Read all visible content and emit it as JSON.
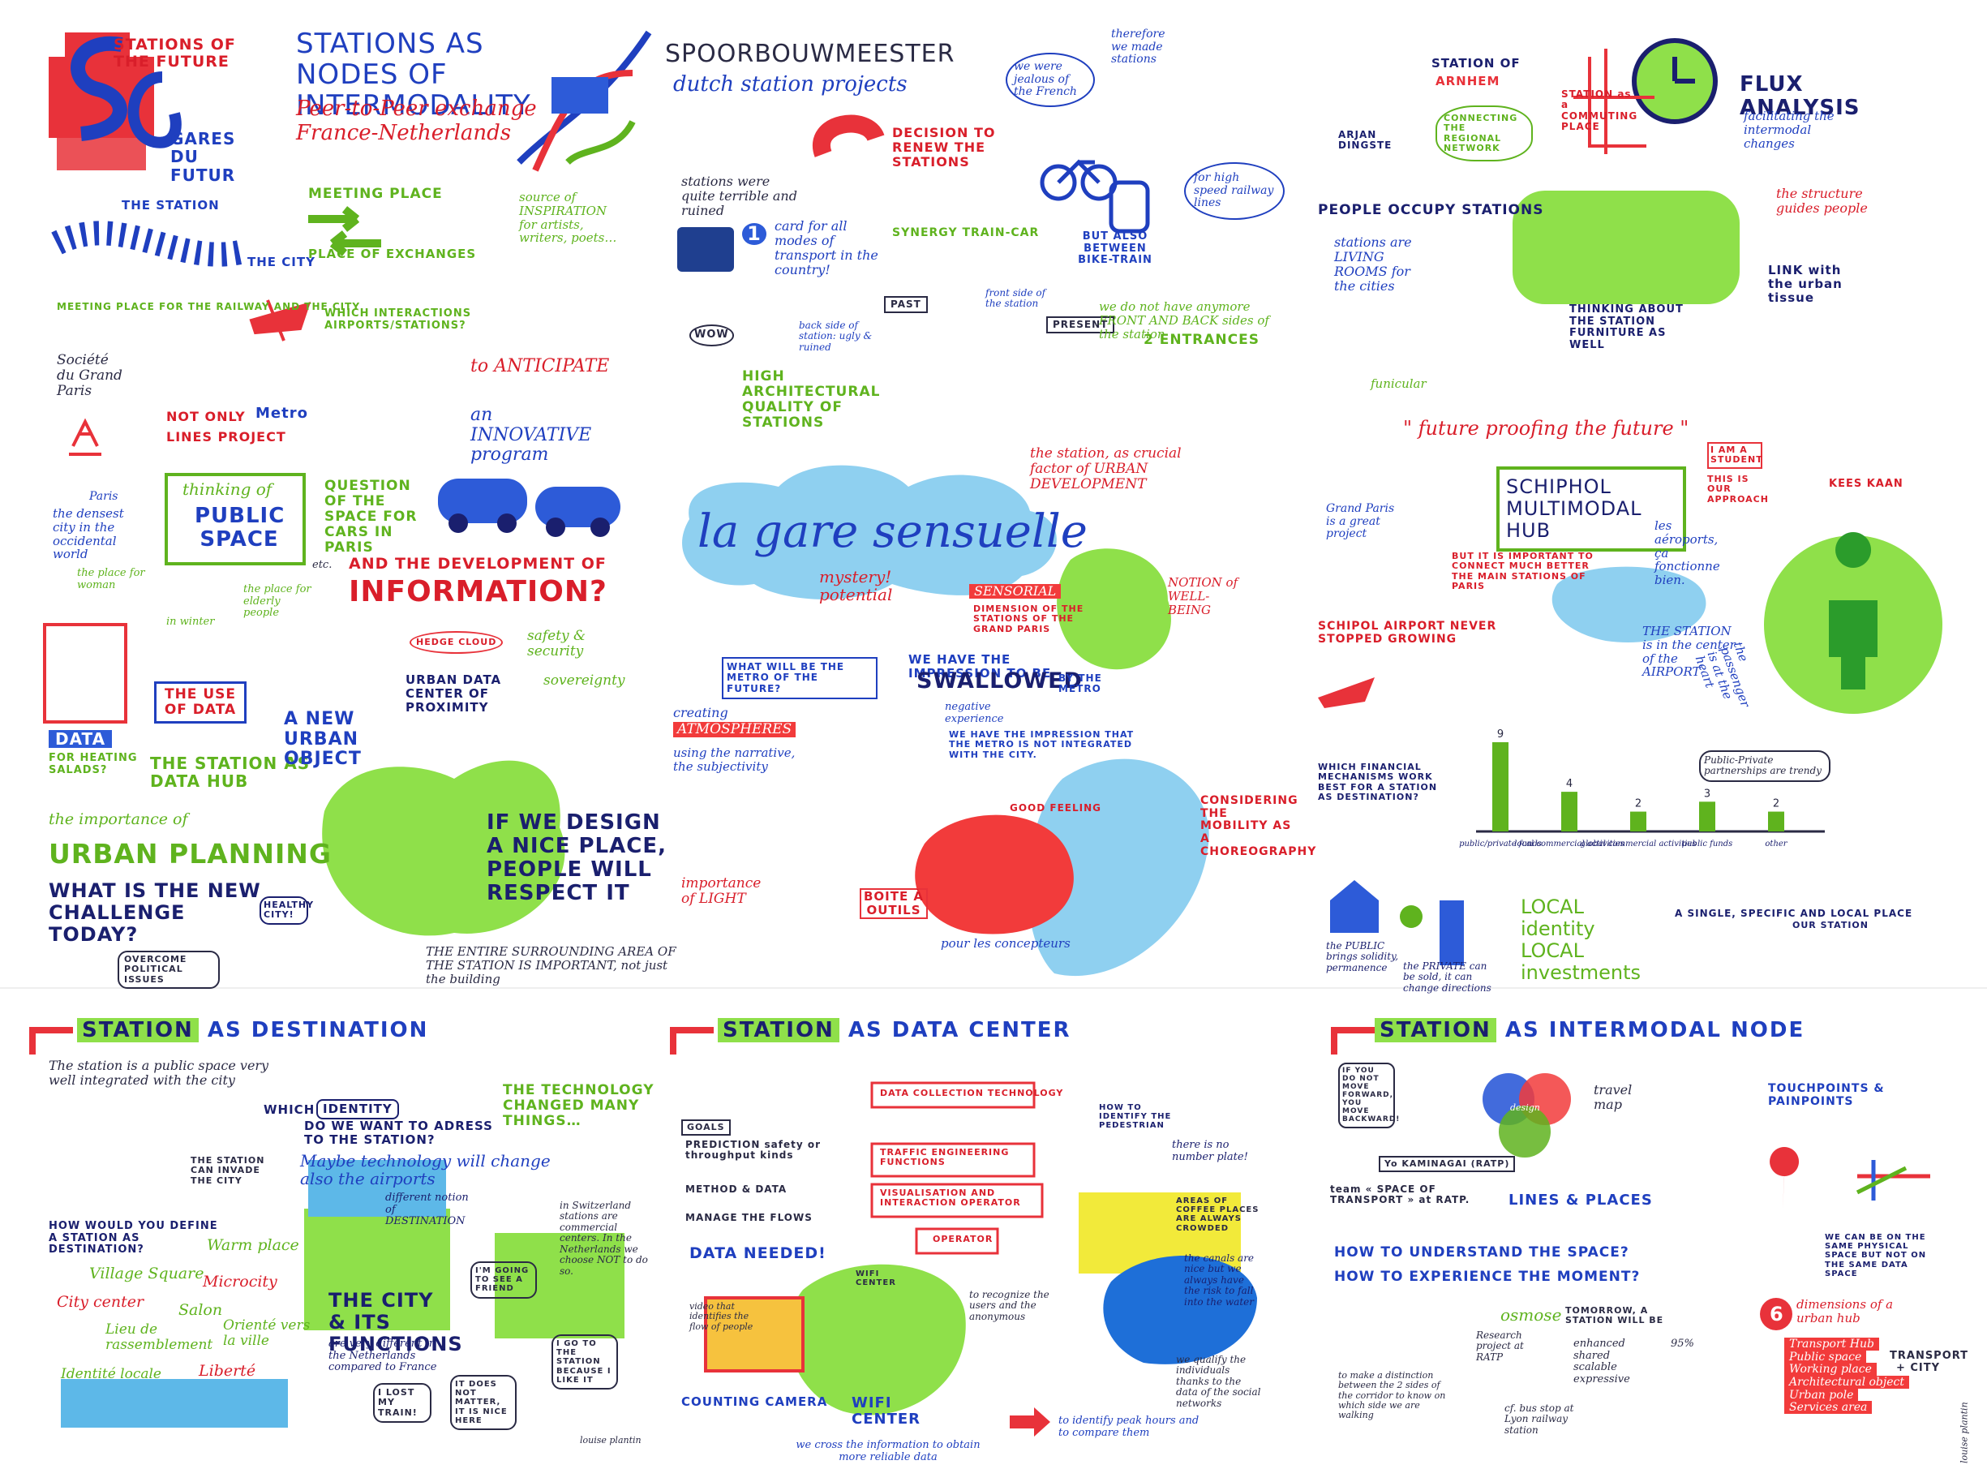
{
  "top_left": {
    "title1": "STATIONS OF THE FUTURE",
    "title2": "GARES DU FUTUR",
    "station_label": "THE STATION",
    "city_label": "THE CITY",
    "meeting_caption": "MEETING PLACE FOR THE RAILWAY AND THE CITY",
    "societe": "Société du Grand Paris",
    "not_only": "NOT ONLY",
    "metro": "Metro",
    "lines_project": "LINES PROJECT",
    "paris": "Paris",
    "densest": "the densest city in the occidental world",
    "thinking_of": "thinking of",
    "public_space": "PUBLIC SPACE",
    "etc": "etc.",
    "woman": "the place for woman",
    "winter": "in winter",
    "elderly": "the place for elderly people",
    "data": "DATA",
    "heating": "FOR HEATING SALADS?",
    "use_of_data": "THE USE OF DATA",
    "data_hub": "THE STATION AS DATA HUB",
    "importance": "the importance of",
    "urban_planning": "URBAN PLANNING",
    "challenge": "WHAT IS THE NEW CHALLENGE TODAY?",
    "political": "OVERCOME POLITICAL ISSUES"
  },
  "top_mid_left": {
    "title": "STATIONS AS NODES OF INTERMODALITY",
    "subtitle1": "Peer-to-Peer exchange",
    "subtitle2": "France-Netherlands",
    "meeting_place": "MEETING PLACE",
    "exchanges": "PLACE OF EXCHANGES",
    "source": "source of INSPIRATION for artists, writers, poets…",
    "which_interactions": "WHICH INTERACTIONS AIRPORTS/STATIONS?",
    "to_anticipate": "to ANTICIPATE",
    "innovative": "an INNOVATIVE program",
    "question_space": "QUESTION OF THE SPACE FOR CARS IN PARIS",
    "development": "AND THE DEVELOPMENT OF",
    "information": "INFORMATION?",
    "cloud": "HEDGE CLOUD",
    "datacenter": "URBAN DATA CENTER OF PROXIMITY",
    "safety": "safety & security",
    "sovereignty": "sovereignty",
    "new_object": "A NEW URBAN OBJECT",
    "design_nice": "IF WE DESIGN A NICE PLACE, PEOPLE WILL RESPECT IT",
    "healthy": "HEALTHY CITY!",
    "surrounding": "THE ENTIRE SURROUNDING AREA OF THE STATION IS IMPORTANT, not just the building"
  },
  "top_center": {
    "title": "SPOORBOUWMEESTER",
    "subtitle": "dutch station projects",
    "terrible": "stations were quite terrible and ruined",
    "decision": "DECISION TO RENEW THE STATIONS",
    "jealous": "we were jealous of the French",
    "therefore": "therefore we made stations",
    "card_num": "1",
    "card": "card for all modes of transport in the country!",
    "synergy": "SYNERGY TRAIN-CAR",
    "bike_train": "BUT ALSO BETWEEN BIKE-TRAIN",
    "high_speed": "for high speed railway lines",
    "wow": "WOW",
    "past": "PAST",
    "present": "PRESENT",
    "back_side": "back side of station: ugly & ruined",
    "front_side": "front side of the station",
    "no_front_back": "we do not have anymore FRONT AND BACK sides of the station",
    "entrances": "2 ENTRANCES",
    "quality": "HIGH ARCHITECTURAL QUALITY OF STATIONS",
    "crucial": "the station, as crucial factor of URBAN DEVELOPMENT"
  },
  "center": {
    "title": "la gare sensuelle",
    "mystery": "mystery! potential",
    "sensorial": "SENSORIAL",
    "dimension": "DIMENSION OF THE STATIONS OF THE GRAND PARIS",
    "wellbeing": "NOTION of WELL-BEING",
    "metro_future": "WHAT WILL BE THE METRO OF THE FUTURE?",
    "impression": "WE HAVE THE IMPRESSION TO BE",
    "swallowed": "SWALLOWED",
    "by_metro": "BY THE METRO",
    "negative": "negative experience",
    "not_integrated": "WE HAVE THE IMPRESSION THAT THE METRO IS NOT INTEGRATED WITH THE CITY.",
    "creating": "creating",
    "atmospheres": "ATMOSPHERES",
    "narrative": "using the narrative, the subjectivity",
    "importance_light": "importance of LIGHT",
    "good_feeling": "GOOD FEELING",
    "choreography": "CONSIDERING THE MOBILITY AS A CHOREOGRAPHY",
    "boite": "BOITE À OUTILS",
    "pour": "pour les concepteurs"
  },
  "top_right": {
    "station_of": "STATION OF",
    "arnhem": "ARNHEM",
    "name": "ARJAN DINGSTE",
    "connecting": "CONNECTING THE REGIONAL NETWORK",
    "flux": "FLUX ANALYSIS",
    "facilitating": "facilitating the intermodal changes",
    "commuting": "STATION as a COMMUTING PLACE",
    "occupy": "PEOPLE OCCUPY STATIONS",
    "living_rooms": "stations are LIVING ROOMS for the cities",
    "structure": "the structure guides people",
    "link": "LINK with the urban tissue",
    "furniture": "THINKING ABOUT THE STATION FURNITURE AS WELL",
    "funicular": "funicular",
    "future_proof": "\" future proofing the future \"",
    "student": "I AM A STUDENT",
    "approach": "THIS IS OUR APPROACH",
    "kees": "KEES KAAN",
    "schiphol_hub": "SCHIPHOL MULTIMODAL HUB",
    "grand_paris": "Grand Paris is a great project",
    "important": "BUT IT IS IMPORTANT TO CONNECT MUCH BETTER THE MAIN STATIONS OF PARIS",
    "airports": "les aéroports, ça fonctionne bien.",
    "schipol_growing": "SCHIPOL AIRPORT NEVER STOPPED GROWING",
    "center_airport": "THE STATION is in the center of the AIRPORT",
    "passenger": "the passenger is at the heart",
    "which_financial": "WHICH FINANCIAL MECHANISMS WORK BEST FOR A STATION AS DESTINATION?",
    "ppp": "Public-Private partnerships are trendy",
    "public_brings": "the PUBLIC brings solidity, permanence",
    "private": "the PRIVATE can be sold, it can change directions",
    "local": "LOCAL identity LOCAL investments",
    "single_place": "A SINGLE, SPECIFIC AND LOCAL PLACE",
    "our_station": "OUR STATION"
  },
  "chart_data": {
    "type": "bar",
    "categories": [
      "public/private funds",
      "local commercial activities",
      "global commercial activities",
      "public funds",
      "other"
    ],
    "values": [
      9,
      4,
      2,
      3,
      2
    ]
  },
  "bottom_left": {
    "station": "STATION",
    "title": "AS DESTINATION",
    "intro": "The station is a public space very well integrated with the city",
    "which": "WHICH",
    "identity": "IDENTITY",
    "do_we_want": "DO WE WANT TO ADRESS TO THE STATION?",
    "tech_changed": "THE TECHNOLOGY CHANGED MANY THINGS…",
    "maybe_tech": "Maybe technology will change also the airports",
    "invade": "THE STATION CAN INVADE THE CITY",
    "how_define": "HOW WOULD YOU DEFINE A STATION AS DESTINATION?",
    "words": [
      "Village Square",
      "Warm place",
      "City center",
      "Microcity",
      "Salon",
      "Lieu de rassemblement",
      "Orienté vers la ville",
      "Identité locale",
      "Liberté"
    ],
    "different_notion": "different notion of DESTINATION",
    "switzerland": "in Switzerland stations are commercial centers. In the Netherlands we choose NOT to do so.",
    "city_functions": "THE CITY & ITS FUNCTIONS",
    "different_nl": "are very different in the Netherlands compared to France",
    "going_friend": "I'M GOING TO SEE A FRIEND",
    "go_station": "I GO TO THE STATION BECAUSE I LIKE IT",
    "lost_train": "I LOST MY TRAIN!",
    "nice_here": "IT DOES NOT MATTER, IT IS NICE HERE",
    "signature": "louise plantin"
  },
  "bottom_center": {
    "station": "STATION",
    "title": "AS DATA CENTER",
    "goals": "GOALS",
    "prediction": "PREDICTION safety or throughput kinds",
    "method": "METHOD & DATA",
    "manage": "MANAGE THE FLOWS",
    "data_needed": "DATA NEEDED!",
    "collection": "DATA COLLECTION TECHNOLOGY",
    "traffic": "TRAFFIC ENGINEERING FUNCTIONS",
    "visualisation": "VISUALISATION AND INTERACTION OPERATOR",
    "operator": "OPERATOR",
    "identify": "HOW TO IDENTIFY THE PEDESTRIAN",
    "number_plate": "there is no number plate!",
    "coffee": "AREAS OF COFFEE PLACES ARE ALWAYS CROWDED",
    "canals": "the canals are nice but we always have the risk to fall into the water",
    "video": "video that identifies the flow of people",
    "wifi": "WIFI CENTER",
    "recognize": "to recognize the users and the anonymous",
    "qualify": "we qualify the individuals thanks to the data of the social networks",
    "counting": "COUNTING CAMERA",
    "wifi_center": "WIFI CENTER",
    "cross": "we cross the information to obtain more reliable data",
    "peak": "to identify peak hours and to compare them"
  },
  "bottom_right": {
    "station": "STATION",
    "title": "AS INTERMODAL NODE",
    "quote": "IF YOU DO NOT MOVE FORWARD, YOU MOVE BACKWARD!",
    "kaminagai": "Yo KAMINAGAI (RATP)",
    "team": "team « SPACE OF TRANSPORT » at RATP.",
    "design": "design",
    "travel_map": "travel map",
    "touchpoints": "TOUCHPOINTS & PAINPOINTS",
    "lines_places": "LINES & PLACES",
    "understand": "HOW TO UNDERSTAND THE SPACE?",
    "experience": "HOW TO EXPERIENCE THE MOMENT?",
    "osmose": "osmose",
    "tomorrow": "TOMORROW, A STATION WILL BE",
    "qualities": [
      "enhanced",
      "shared",
      "scalable",
      "expressive"
    ],
    "research": "Research project at RATP",
    "percent": "95%",
    "same_space": "WE CAN BE ON THE SAME PHYSICAL SPACE BUT NOT ON THE SAME DATA SPACE",
    "distinction": "to make a distinction between the 2 sides of the corridor to know on which side we are walking",
    "bus_stop": "cf. bus stop at Lyon railway station",
    "six": "6",
    "dimensions": "dimensions of a urban hub",
    "hub_items": [
      "Transport Hub",
      "Public space",
      "Working place",
      "Architectural object",
      "Urban pole",
      "Services area"
    ],
    "transport_city": "TRANSPORT + CITY",
    "signature": "louise plantin"
  }
}
